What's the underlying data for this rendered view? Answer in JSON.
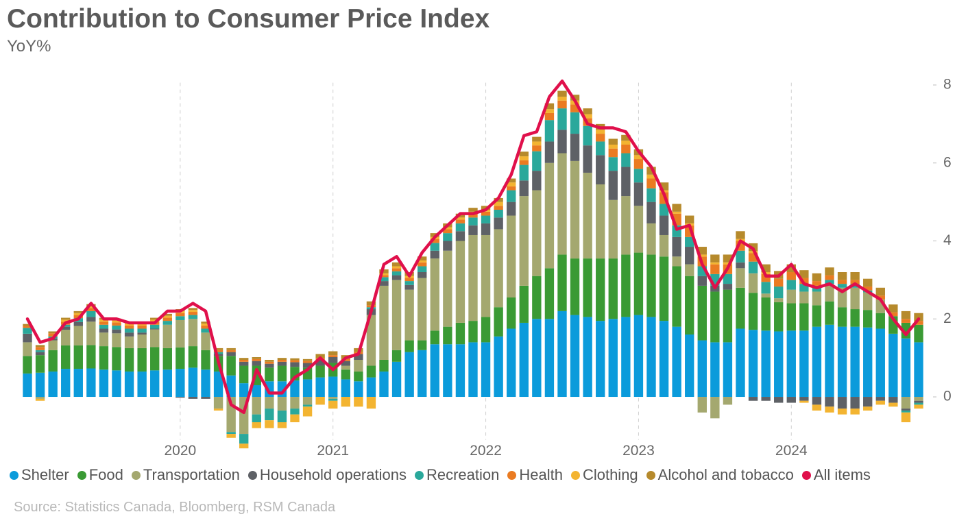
{
  "chart_data": {
    "type": "bar",
    "stacked": true,
    "title": "Contribution to Consumer Price Index",
    "subtitle": "YoY%",
    "source": "Source: Statistics Canada, Bloomberg, RSM Canada",
    "categories": [
      null,
      null,
      null,
      null,
      null,
      null,
      null,
      null,
      null,
      null,
      null,
      null,
      "2020",
      null,
      null,
      null,
      null,
      null,
      null,
      null,
      null,
      null,
      null,
      null,
      "2021",
      null,
      null,
      null,
      null,
      null,
      null,
      null,
      null,
      null,
      null,
      null,
      "2022",
      null,
      null,
      null,
      null,
      null,
      null,
      null,
      null,
      null,
      null,
      null,
      "2023",
      null,
      null,
      null,
      null,
      null,
      null,
      null,
      null,
      null,
      null,
      null,
      "2024",
      null,
      null,
      null,
      null,
      null,
      null,
      null,
      null,
      null,
      null
    ],
    "ylim": [
      -1.1,
      8.2
    ],
    "yticks": [
      0,
      2,
      4,
      6,
      8
    ],
    "x_grid": true,
    "legend": "bottom",
    "series": [
      {
        "name": "Shelter",
        "type": "bar",
        "color": "#0b9bdb",
        "values": [
          0.6,
          0.62,
          0.65,
          0.72,
          0.72,
          0.73,
          0.7,
          0.68,
          0.65,
          0.65,
          0.68,
          0.7,
          0.72,
          0.75,
          0.7,
          0.65,
          0.55,
          0.35,
          0.3,
          0.4,
          0.4,
          0.42,
          0.45,
          0.5,
          0.52,
          0.45,
          0.4,
          0.5,
          0.65,
          0.9,
          1.15,
          1.2,
          1.35,
          1.35,
          1.35,
          1.4,
          1.4,
          1.55,
          1.75,
          1.9,
          2.0,
          2.0,
          2.2,
          2.1,
          2.05,
          1.95,
          2.0,
          2.05,
          2.1,
          2.05,
          1.95,
          1.8,
          1.6,
          1.45,
          1.4,
          1.4,
          1.75,
          1.72,
          1.7,
          1.68,
          1.7,
          1.7,
          1.8,
          1.85,
          1.8,
          1.8,
          1.78,
          1.75,
          1.62,
          1.5,
          1.4
        ]
      },
      {
        "name": "Food",
        "type": "bar",
        "color": "#3a9a34",
        "values": [
          0.45,
          0.45,
          0.55,
          0.6,
          0.6,
          0.6,
          0.6,
          0.6,
          0.6,
          0.6,
          0.6,
          0.55,
          0.55,
          0.55,
          0.5,
          0.4,
          0.5,
          0.45,
          0.5,
          0.35,
          0.4,
          0.35,
          0.3,
          0.3,
          0.35,
          0.25,
          0.25,
          0.3,
          0.3,
          0.3,
          0.3,
          0.25,
          0.35,
          0.45,
          0.55,
          0.55,
          0.65,
          0.75,
          0.8,
          0.95,
          1.1,
          1.3,
          1.45,
          1.45,
          1.5,
          1.6,
          1.55,
          1.6,
          1.6,
          1.6,
          1.65,
          1.55,
          1.5,
          1.4,
          1.3,
          1.35,
          1.05,
          0.95,
          0.85,
          0.75,
          0.7,
          0.7,
          0.55,
          0.6,
          0.5,
          0.45,
          0.45,
          0.4,
          0.45,
          0.4,
          0.45
        ]
      },
      {
        "name": "Transportation",
        "type": "bar",
        "color": "#a4a86f",
        "values": [
          0.35,
          -0.05,
          0.25,
          0.4,
          0.5,
          0.6,
          0.35,
          0.35,
          0.3,
          0.35,
          0.45,
          0.6,
          0.7,
          0.7,
          0.45,
          -0.3,
          -0.9,
          -0.95,
          -0.45,
          -0.3,
          -0.35,
          -0.3,
          -0.2,
          0.0,
          -0.05,
          0.1,
          0.3,
          1.3,
          1.9,
          1.8,
          1.3,
          1.6,
          1.85,
          1.95,
          2.1,
          2.2,
          2.1,
          2.0,
          2.1,
          2.3,
          2.2,
          2.7,
          2.6,
          2.5,
          2.2,
          1.9,
          1.5,
          1.5,
          1.2,
          0.8,
          0.55,
          0.25,
          0.3,
          -0.4,
          -0.55,
          -0.2,
          0.5,
          0.5,
          0.1,
          0.1,
          0.35,
          0.3,
          0.35,
          0.45,
          0.5,
          0.55,
          0.45,
          0.35,
          0.0,
          -0.3,
          -0.1
        ]
      },
      {
        "name": "Household operations",
        "type": "bar",
        "color": "#5e6166",
        "values": [
          0.22,
          0.08,
          0.05,
          0.08,
          0.1,
          0.12,
          0.1,
          0.1,
          0.1,
          0.05,
          0.02,
          0.0,
          -0.02,
          -0.05,
          -0.05,
          0.05,
          0.1,
          0.1,
          0.12,
          0.1,
          0.1,
          0.12,
          0.12,
          0.15,
          0.15,
          0.12,
          0.15,
          0.15,
          0.12,
          0.12,
          0.12,
          0.15,
          0.2,
          0.25,
          0.25,
          0.25,
          0.3,
          0.3,
          0.35,
          0.4,
          0.5,
          0.55,
          0.6,
          0.7,
          0.7,
          0.75,
          0.75,
          0.75,
          0.6,
          0.55,
          0.5,
          0.5,
          0.45,
          0.25,
          0.15,
          0.15,
          0.15,
          -0.1,
          -0.1,
          -0.15,
          -0.15,
          -0.1,
          -0.2,
          -0.25,
          -0.3,
          -0.3,
          -0.25,
          -0.1,
          -0.15,
          -0.05,
          -0.05
        ]
      },
      {
        "name": "Recreation",
        "type": "bar",
        "color": "#2aa89b",
        "values": [
          0.15,
          0.05,
          0.05,
          0.05,
          0.1,
          0.15,
          0.1,
          0.1,
          0.1,
          0.1,
          0.1,
          0.1,
          0.1,
          0.1,
          0.1,
          0.05,
          -0.05,
          -0.25,
          -0.2,
          -0.3,
          -0.3,
          -0.15,
          -0.05,
          0.0,
          -0.05,
          0.0,
          0.0,
          0.05,
          0.1,
          0.1,
          0.1,
          0.15,
          0.2,
          0.2,
          0.2,
          0.2,
          0.2,
          0.2,
          0.3,
          0.4,
          0.5,
          0.55,
          0.55,
          0.55,
          0.5,
          0.35,
          0.35,
          0.35,
          0.35,
          0.35,
          0.3,
          0.3,
          0.25,
          0.25,
          0.3,
          0.25,
          0.3,
          0.3,
          0.3,
          0.3,
          0.25,
          0.2,
          0.15,
          0.1,
          0.1,
          0.1,
          0.05,
          0.0,
          0.0,
          -0.05,
          -0.05
        ]
      },
      {
        "name": "Health",
        "type": "bar",
        "color": "#ea7b22",
        "values": [
          0.05,
          0.08,
          0.08,
          0.08,
          0.08,
          0.08,
          0.08,
          0.08,
          0.08,
          0.08,
          0.08,
          0.08,
          0.08,
          0.08,
          0.08,
          0.05,
          0.05,
          0.05,
          0.05,
          0.05,
          0.05,
          0.05,
          0.05,
          0.05,
          0.05,
          0.05,
          0.05,
          0.05,
          0.05,
          0.08,
          0.08,
          0.1,
          0.1,
          0.1,
          0.1,
          0.1,
          0.1,
          0.1,
          0.1,
          0.12,
          0.15,
          0.18,
          0.2,
          0.2,
          0.2,
          0.2,
          0.22,
          0.22,
          0.25,
          0.25,
          0.3,
          0.3,
          0.3,
          0.25,
          0.25,
          0.25,
          0.25,
          0.22,
          0.2,
          0.2,
          0.2,
          0.15,
          0.12,
          0.12,
          0.1,
          0.1,
          0.1,
          0.1,
          0.1,
          0.1,
          0.1
        ]
      },
      {
        "name": "Clothing",
        "type": "bar",
        "color": "#f3b431",
        "values": [
          0.0,
          -0.05,
          0.0,
          0.05,
          0.05,
          0.05,
          0.05,
          0.05,
          0.05,
          0.05,
          0.05,
          0.05,
          0.05,
          0.05,
          0.05,
          -0.05,
          -0.1,
          -0.12,
          -0.15,
          -0.2,
          -0.15,
          -0.2,
          -0.25,
          -0.2,
          -0.2,
          -0.25,
          -0.25,
          -0.3,
          0.05,
          0.05,
          0.05,
          0.05,
          0.05,
          0.05,
          0.05,
          0.05,
          0.05,
          0.1,
          0.1,
          0.1,
          0.1,
          0.1,
          0.1,
          0.1,
          0.1,
          0.1,
          0.1,
          0.1,
          0.1,
          0.1,
          0.05,
          0.05,
          0.05,
          0.05,
          0.05,
          0.05,
          0.05,
          0.05,
          0.05,
          0.0,
          0.0,
          -0.05,
          -0.15,
          -0.15,
          -0.15,
          -0.15,
          -0.1,
          -0.1,
          -0.1,
          -0.25,
          -0.1
        ]
      },
      {
        "name": "Alcohol and tobacco",
        "type": "bar",
        "color": "#b68a2c",
        "values": [
          0.05,
          0.05,
          0.05,
          0.05,
          0.05,
          0.05,
          0.05,
          0.05,
          0.05,
          0.05,
          0.05,
          0.05,
          0.05,
          0.05,
          0.05,
          0.05,
          0.05,
          0.05,
          0.05,
          0.05,
          0.05,
          0.05,
          0.05,
          0.1,
          0.1,
          0.1,
          0.1,
          0.1,
          0.1,
          0.1,
          0.1,
          0.1,
          0.1,
          0.1,
          0.1,
          0.1,
          0.1,
          0.1,
          0.1,
          0.12,
          0.12,
          0.15,
          0.15,
          0.15,
          0.15,
          0.15,
          0.15,
          0.15,
          0.15,
          0.2,
          0.2,
          0.2,
          0.2,
          0.2,
          0.2,
          0.2,
          0.2,
          0.2,
          0.2,
          0.2,
          0.2,
          0.2,
          0.2,
          0.2,
          0.2,
          0.2,
          0.2,
          0.2,
          0.2,
          0.2,
          0.2
        ]
      },
      {
        "name": "All items",
        "type": "line",
        "color": "#e0104b",
        "values": [
          2.0,
          1.4,
          1.5,
          1.9,
          2.0,
          2.4,
          2.0,
          2.0,
          1.9,
          1.9,
          1.9,
          2.2,
          2.2,
          2.4,
          2.2,
          0.9,
          -0.2,
          -0.4,
          0.7,
          0.1,
          0.1,
          0.5,
          0.7,
          1.0,
          0.7,
          1.0,
          1.1,
          2.2,
          3.4,
          3.6,
          3.1,
          3.7,
          4.1,
          4.4,
          4.7,
          4.7,
          4.8,
          5.1,
          5.7,
          6.7,
          6.8,
          7.7,
          8.1,
          7.6,
          7.0,
          6.9,
          6.9,
          6.8,
          6.3,
          5.9,
          5.2,
          4.3,
          4.4,
          3.4,
          2.8,
          3.3,
          4.0,
          3.8,
          3.1,
          3.1,
          3.4,
          2.9,
          2.8,
          2.9,
          2.7,
          2.9,
          2.7,
          2.5,
          2.0,
          1.6,
          2.0
        ]
      }
    ]
  }
}
